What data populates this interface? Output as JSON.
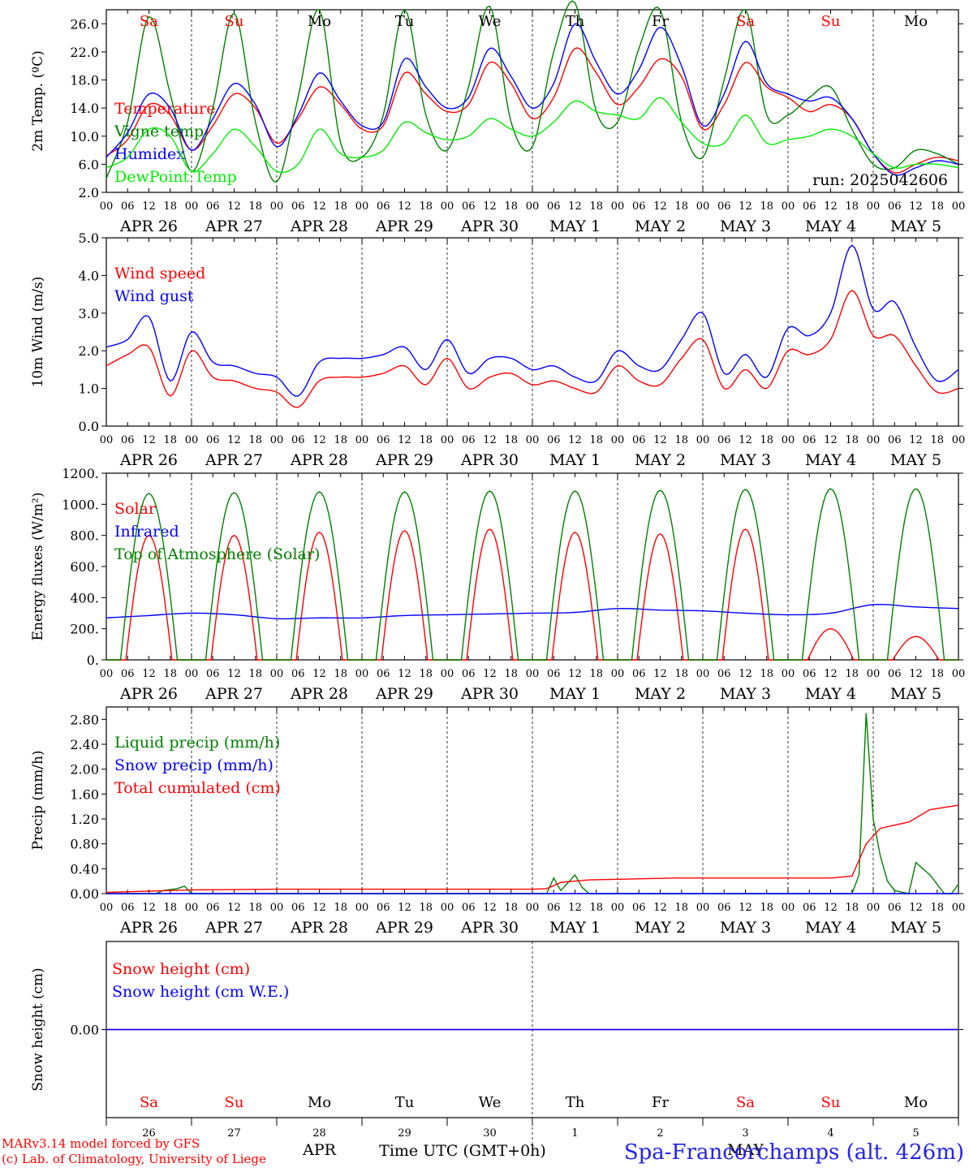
{
  "chart_data": [
    {
      "type": "line",
      "panel": "temperature",
      "ylabel": "2m Temp. (ºC)",
      "ylim": [
        2,
        28
      ],
      "yticks": [
        "26.0",
        "22.0",
        "18.0",
        "14.0",
        "10.0",
        "6.0",
        "2.0"
      ],
      "ytick_values": [
        26,
        22,
        18,
        14,
        10,
        6,
        2
      ],
      "run_label": "run: 2025042606",
      "x_hours": [
        0,
        6,
        12,
        18,
        24,
        30,
        36,
        42,
        48,
        54,
        60,
        66,
        72,
        78,
        84,
        90,
        96,
        102,
        108,
        114,
        120,
        126,
        132,
        138,
        144,
        150,
        156,
        162,
        168,
        174,
        180,
        186,
        192,
        198,
        204,
        210,
        216,
        222,
        228,
        234,
        240
      ],
      "series": [
        {
          "name": "Temperature",
          "color": "#ff0000",
          "values": [
            7.2,
            9.5,
            14.5,
            13.0,
            8.0,
            11.5,
            16.0,
            14.0,
            9.0,
            12.5,
            17.0,
            14.5,
            11.0,
            11.5,
            19.0,
            16.0,
            13.5,
            14.5,
            20.5,
            17.5,
            12.5,
            15.5,
            22.5,
            19.0,
            14.5,
            17.0,
            21.0,
            18.5,
            11.0,
            14.5,
            20.5,
            17.0,
            15.5,
            13.5,
            14.5,
            12.5,
            7.5,
            4.8,
            6.0,
            7.0,
            6.5
          ]
        },
        {
          "name": "Vigne temp",
          "color": "#008000",
          "values": [
            4.0,
            12.0,
            27.0,
            16.0,
            5.0,
            14.0,
            27.5,
            12.0,
            3.5,
            15.5,
            28.0,
            9.0,
            7.0,
            13.0,
            28.0,
            13.0,
            8.0,
            17.0,
            28.5,
            12.0,
            8.5,
            22.0,
            29.0,
            13.5,
            12.0,
            22.5,
            28.0,
            12.0,
            7.0,
            18.0,
            28.0,
            13.0,
            13.0,
            15.5,
            17.0,
            11.0,
            6.0,
            5.5,
            8.0,
            7.5,
            6.0
          ]
        },
        {
          "name": "Humidex",
          "color": "#0000ff",
          "values": [
            7.0,
            10.5,
            16.0,
            14.0,
            8.0,
            12.5,
            17.5,
            14.5,
            8.5,
            13.0,
            19.0,
            15.0,
            11.5,
            12.0,
            21.0,
            17.0,
            14.0,
            15.5,
            22.5,
            18.5,
            14.0,
            17.5,
            26.0,
            20.5,
            16.0,
            19.5,
            25.5,
            20.0,
            11.5,
            16.0,
            23.5,
            17.5,
            16.0,
            15.0,
            15.5,
            12.5,
            7.5,
            4.5,
            5.5,
            6.5,
            6.0
          ]
        },
        {
          "name": "DewPoint Temp",
          "color": "#00ee00",
          "values": [
            5.5,
            7.0,
            11.0,
            10.0,
            5.0,
            7.5,
            11.0,
            8.5,
            5.0,
            6.0,
            11.0,
            7.5,
            7.0,
            8.0,
            12.0,
            10.5,
            9.5,
            10.0,
            12.5,
            11.0,
            10.0,
            12.0,
            15.0,
            13.5,
            13.0,
            12.5,
            15.5,
            12.0,
            9.0,
            9.0,
            13.0,
            9.0,
            9.5,
            10.0,
            11.0,
            10.0,
            7.5,
            5.5,
            6.0,
            6.0,
            5.5
          ]
        }
      ]
    },
    {
      "type": "line",
      "panel": "wind",
      "ylabel": "10m Wind (m/s)",
      "ylim": [
        0,
        5
      ],
      "yticks": [
        "5.0",
        "4.0",
        "3.0",
        "2.0",
        "1.0",
        "0.0"
      ],
      "ytick_values": [
        5,
        4,
        3,
        2,
        1,
        0
      ],
      "x_hours": [
        0,
        6,
        12,
        18,
        24,
        30,
        36,
        42,
        48,
        54,
        60,
        66,
        72,
        78,
        84,
        90,
        96,
        102,
        108,
        114,
        120,
        126,
        132,
        138,
        144,
        150,
        156,
        162,
        168,
        174,
        180,
        186,
        192,
        198,
        204,
        210,
        216,
        222,
        228,
        234,
        240
      ],
      "series": [
        {
          "name": "Wind speed",
          "color": "#ff0000",
          "values": [
            1.6,
            1.9,
            2.1,
            0.8,
            2.0,
            1.3,
            1.2,
            1.0,
            0.9,
            0.5,
            1.2,
            1.3,
            1.3,
            1.4,
            1.6,
            1.1,
            1.8,
            1.0,
            1.3,
            1.4,
            1.1,
            1.2,
            1.0,
            0.9,
            1.6,
            1.2,
            1.1,
            1.8,
            2.3,
            1.0,
            1.5,
            1.0,
            2.0,
            1.9,
            2.3,
            3.6,
            2.4,
            2.4,
            1.6,
            0.9,
            1.0
          ]
        },
        {
          "name": "Wind gust",
          "color": "#0000ff",
          "values": [
            2.1,
            2.3,
            2.9,
            1.2,
            2.5,
            1.7,
            1.6,
            1.4,
            1.3,
            0.8,
            1.7,
            1.8,
            1.8,
            1.9,
            2.1,
            1.5,
            2.3,
            1.4,
            1.8,
            1.8,
            1.5,
            1.6,
            1.3,
            1.2,
            2.0,
            1.6,
            1.5,
            2.3,
            3.0,
            1.4,
            1.9,
            1.3,
            2.6,
            2.4,
            3.0,
            4.8,
            3.1,
            3.3,
            2.1,
            1.2,
            1.5
          ]
        }
      ]
    },
    {
      "type": "line",
      "panel": "energy",
      "ylabel": "Energy fluxes (W/m²)",
      "ylim": [
        0,
        1200
      ],
      "yticks": [
        "1200.",
        "1000.",
        "800.",
        "600.",
        "400.",
        "200.",
        "0."
      ],
      "ytick_values": [
        1200,
        1000,
        800,
        600,
        400,
        200,
        0
      ],
      "series": [
        {
          "name": "Solar",
          "color": "#ff0000",
          "peaks": [
            800,
            800,
            820,
            830,
            840,
            820,
            810,
            840,
            200,
            150
          ]
        },
        {
          "name": "Infrared",
          "color": "#0000ff",
          "values": [
            270,
            285,
            300,
            290,
            265,
            270,
            270,
            285,
            290,
            295,
            300,
            305,
            330,
            320,
            315,
            300,
            290,
            300,
            355,
            340,
            330
          ]
        },
        {
          "name": "Top of Atmosphere (Solar)",
          "color": "#008000",
          "peaks": [
            1070,
            1075,
            1080,
            1080,
            1085,
            1085,
            1090,
            1095,
            1100,
            1100
          ]
        }
      ]
    },
    {
      "type": "line",
      "panel": "precip",
      "ylabel": "Precip (mm/h)",
      "ylim": [
        0,
        3
      ],
      "yticks": [
        "2.80",
        "2.40",
        "2.00",
        "1.60",
        "1.20",
        "0.80",
        "0.40",
        "0.00"
      ],
      "ytick_values": [
        2.8,
        2.4,
        2.0,
        1.6,
        1.2,
        0.8,
        0.4,
        0.0
      ],
      "series": [
        {
          "name": "Liquid precip (mm/h)",
          "color": "#008000",
          "points": [
            [
              0,
              0
            ],
            [
              14,
              0
            ],
            [
              16,
              0.05
            ],
            [
              20,
              0.08
            ],
            [
              22,
              0.12
            ],
            [
              24,
              0
            ],
            [
              124,
              0
            ],
            [
              126,
              0.25
            ],
            [
              128,
              0.05
            ],
            [
              132,
              0.3
            ],
            [
              134,
              0.1
            ],
            [
              136,
              0
            ],
            [
              210,
              0
            ],
            [
              212,
              0.3
            ],
            [
              214,
              2.9
            ],
            [
              216,
              1.2
            ],
            [
              218,
              0.6
            ],
            [
              220,
              0.2
            ],
            [
              222,
              0.05
            ],
            [
              226,
              0
            ],
            [
              228,
              0.5
            ],
            [
              232,
              0.3
            ],
            [
              236,
              0
            ],
            [
              238,
              0
            ],
            [
              240,
              0.15
            ]
          ]
        },
        {
          "name": "Snow precip (mm/h)",
          "color": "#0000ff",
          "points": [
            [
              0,
              0
            ],
            [
              240,
              0
            ]
          ]
        },
        {
          "name": "Total cumulated (cm)",
          "color": "#ff0000",
          "points": [
            [
              0,
              0.02
            ],
            [
              24,
              0.06
            ],
            [
              48,
              0.07
            ],
            [
              120,
              0.07
            ],
            [
              124,
              0.08
            ],
            [
              128,
              0.18
            ],
            [
              136,
              0.22
            ],
            [
              160,
              0.25
            ],
            [
              204,
              0.25
            ],
            [
              210,
              0.28
            ],
            [
              214,
              0.8
            ],
            [
              218,
              1.05
            ],
            [
              226,
              1.15
            ],
            [
              232,
              1.35
            ],
            [
              240,
              1.42
            ]
          ]
        }
      ]
    },
    {
      "type": "line",
      "panel": "snow",
      "ylabel": "Snow height (cm)",
      "ylim": [
        -1,
        1
      ],
      "yticks": [
        "0.00"
      ],
      "ytick_values": [
        0
      ],
      "series": [
        {
          "name": "Snow height (cm)",
          "color": "#ff0000",
          "values": [
            0,
            0
          ]
        },
        {
          "name": "Snow height (cm W.E.)",
          "color": "#0000ff",
          "values": [
            0,
            0
          ]
        }
      ]
    }
  ],
  "x_axis": {
    "hour_ticks": [
      "00",
      "06",
      "12",
      "18"
    ],
    "date_labels": [
      "APR 26",
      "APR 27",
      "APR 28",
      "APR 29",
      "APR 30",
      "MAY  1",
      "MAY  2",
      "MAY  3",
      "MAY  4",
      "MAY  5"
    ],
    "final_tick": "00"
  },
  "day_labels": [
    {
      "label": "Sa",
      "color": "#ff0000"
    },
    {
      "label": "Su",
      "color": "#ff0000"
    },
    {
      "label": "Mo",
      "color": "#000000"
    },
    {
      "label": "Tu",
      "color": "#000000"
    },
    {
      "label": "We",
      "color": "#000000"
    },
    {
      "label": "Th",
      "color": "#000000"
    },
    {
      "label": "Fr",
      "color": "#000000"
    },
    {
      "label": "Sa",
      "color": "#ff0000"
    },
    {
      "label": "Su",
      "color": "#ff0000"
    },
    {
      "label": "Mo",
      "color": "#000000"
    }
  ],
  "bottom_axis": {
    "day_numbers": [
      "26",
      "27",
      "28",
      "29",
      "30",
      "1",
      "2",
      "3",
      "4",
      "5"
    ],
    "month_left": "APR",
    "month_right": "MAY",
    "time_label": "Time UTC (GMT+0h)"
  },
  "footer": {
    "model_line1": "MARv3.14 model forced by GFS",
    "model_line2": "(c) Lab. of Climatology, University of Liege",
    "station": "Spa-Francorchamps (alt. 426m)"
  }
}
